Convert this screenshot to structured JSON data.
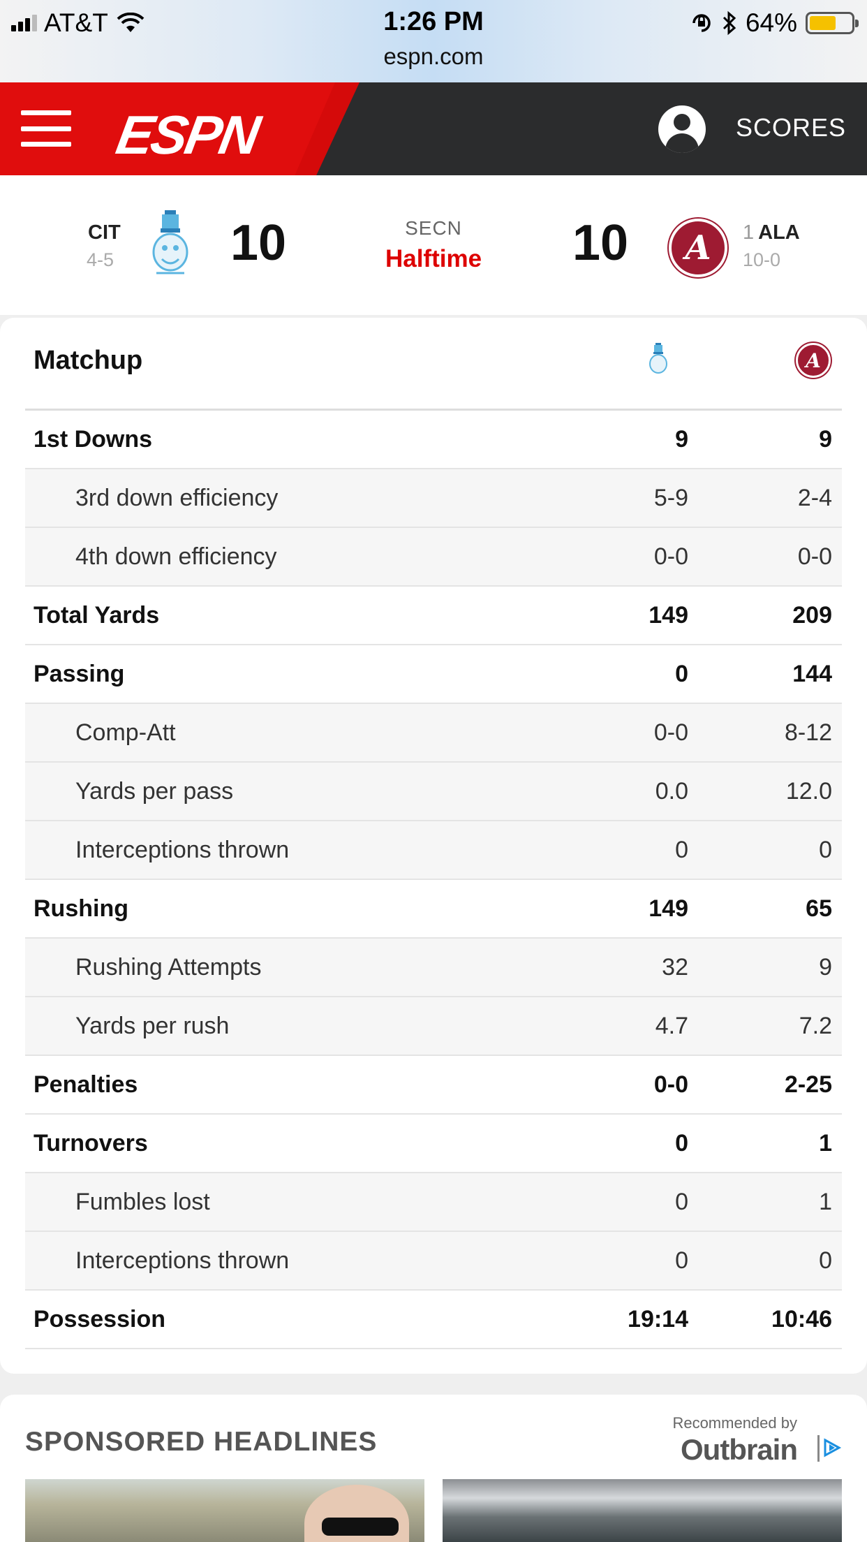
{
  "status_bar": {
    "carrier": "AT&T",
    "time": "1:26 PM",
    "url": "espn.com",
    "battery": "64%",
    "battery_level": 0.64
  },
  "header": {
    "logo": "ESPN",
    "scores_label": "SCORES",
    "menu_icon": "hamburger-icon",
    "user_icon": "user-account-icon"
  },
  "game": {
    "away": {
      "abbr": "CIT",
      "record": "4-5",
      "score": "10"
    },
    "network": "SECN",
    "status": "Halftime",
    "home": {
      "rank": "1",
      "abbr": "ALA",
      "record": "10-0",
      "score": "10"
    }
  },
  "matchup": {
    "title": "Matchup",
    "rows": [
      {
        "label": "1st Downs",
        "away": "9",
        "home": "9",
        "type": "main"
      },
      {
        "label": "3rd down efficiency",
        "away": "5-9",
        "home": "2-4",
        "type": "sub"
      },
      {
        "label": "4th down efficiency",
        "away": "0-0",
        "home": "0-0",
        "type": "sub"
      },
      {
        "label": "Total Yards",
        "away": "149",
        "home": "209",
        "type": "main"
      },
      {
        "label": "Passing",
        "away": "0",
        "home": "144",
        "type": "main"
      },
      {
        "label": "Comp-Att",
        "away": "0-0",
        "home": "8-12",
        "type": "sub"
      },
      {
        "label": "Yards per pass",
        "away": "0.0",
        "home": "12.0",
        "type": "sub"
      },
      {
        "label": "Interceptions thrown",
        "away": "0",
        "home": "0",
        "type": "sub"
      },
      {
        "label": "Rushing",
        "away": "149",
        "home": "65",
        "type": "main"
      },
      {
        "label": "Rushing Attempts",
        "away": "32",
        "home": "9",
        "type": "sub"
      },
      {
        "label": "Yards per rush",
        "away": "4.7",
        "home": "7.2",
        "type": "sub"
      },
      {
        "label": "Penalties",
        "away": "0-0",
        "home": "2-25",
        "type": "main"
      },
      {
        "label": "Turnovers",
        "away": "0",
        "home": "1",
        "type": "main"
      },
      {
        "label": "Fumbles lost",
        "away": "0",
        "home": "1",
        "type": "sub"
      },
      {
        "label": "Interceptions thrown",
        "away": "0",
        "home": "0",
        "type": "sub"
      },
      {
        "label": "Possession",
        "away": "19:14",
        "home": "10:46",
        "type": "main"
      }
    ]
  },
  "sponsored": {
    "title": "SPONSORED HEADLINES",
    "recommended_by": "Recommended by",
    "brand": "Outbrain"
  },
  "colors": {
    "espn_red": "#d50a0a",
    "header_dark": "#2b2c2d",
    "status_red": "#dd0000",
    "alabama_crimson": "#9e1b32",
    "citadel_blue": "#5bb5e0"
  }
}
